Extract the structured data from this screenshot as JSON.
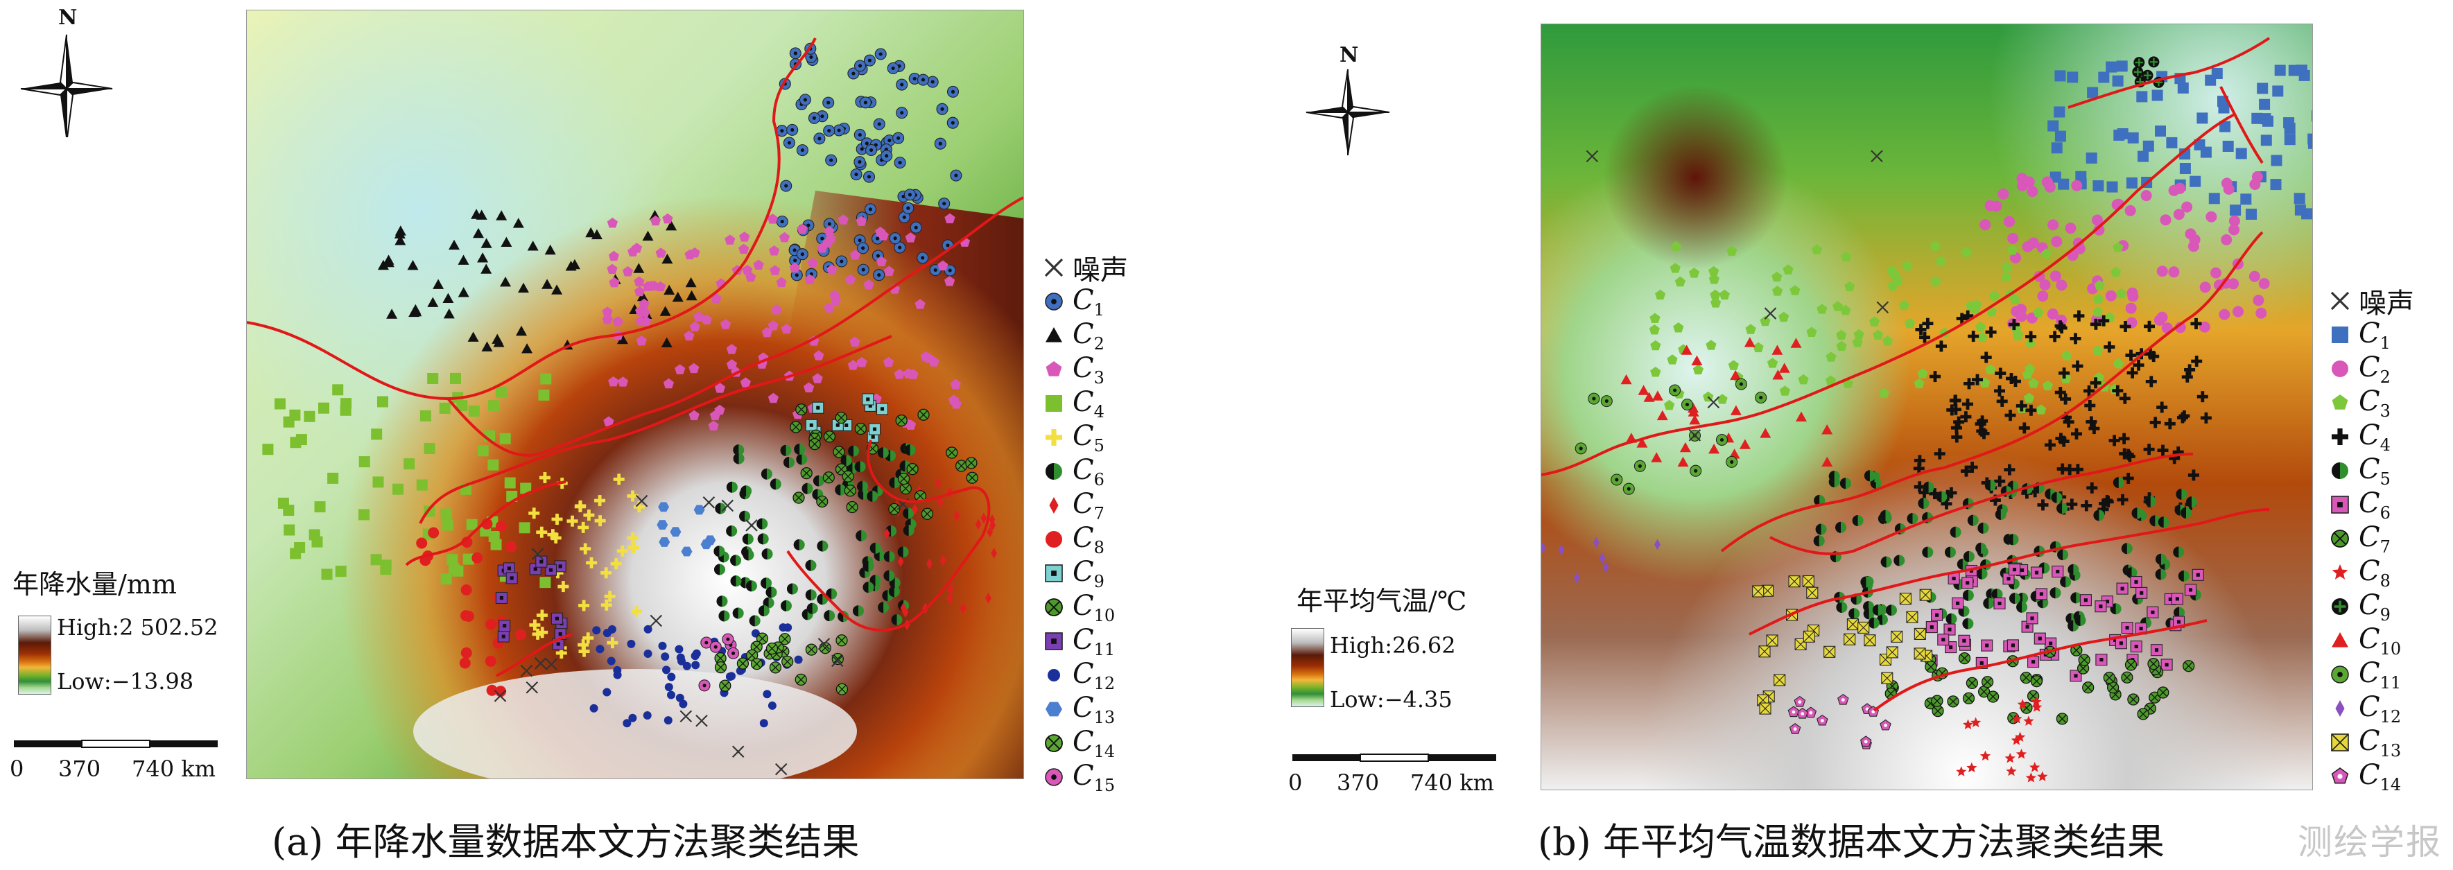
{
  "panel_a": {
    "caption": "(a) 年降水量数据本文方法聚类结果",
    "north_label": "N",
    "legend_title": "年降水量/mm",
    "high_label": "High:2 502.52",
    "low_label": "Low:−13.98",
    "scale_ticks": [
      "0",
      "370",
      "740 km"
    ],
    "noise_label": "噪声",
    "clusters": [
      {
        "id": "C",
        "sub": "1",
        "symbol": "circle-dot",
        "color": "#3f6fbf"
      },
      {
        "id": "C",
        "sub": "2",
        "symbol": "triangle",
        "color": "#111111"
      },
      {
        "id": "C",
        "sub": "3",
        "symbol": "pentagon",
        "color": "#d957b8"
      },
      {
        "id": "C",
        "sub": "4",
        "symbol": "square",
        "color": "#7cbf2f"
      },
      {
        "id": "C",
        "sub": "5",
        "symbol": "cross",
        "color": "#f3e040"
      },
      {
        "id": "C",
        "sub": "6",
        "symbol": "half-circle",
        "color": "#2f8f2f"
      },
      {
        "id": "C",
        "sub": "7",
        "symbol": "diamond",
        "color": "#e02020"
      },
      {
        "id": "C",
        "sub": "8",
        "symbol": "circle",
        "color": "#e02020"
      },
      {
        "id": "C",
        "sub": "9",
        "symbol": "square-dot",
        "color": "#7fd0d0"
      },
      {
        "id": "C",
        "sub": "10",
        "symbol": "circle-x",
        "color": "#4c9a2a"
      },
      {
        "id": "C",
        "sub": "11",
        "symbol": "square-dot",
        "color": "#7a3fb0"
      },
      {
        "id": "C",
        "sub": "12",
        "symbol": "small-dot",
        "color": "#1a2f9a"
      },
      {
        "id": "C",
        "sub": "13",
        "symbol": "hexagon",
        "color": "#4d7fd0"
      },
      {
        "id": "C",
        "sub": "14",
        "symbol": "circle-x",
        "color": "#5aa832"
      },
      {
        "id": "C",
        "sub": "15",
        "symbol": "circle-dot",
        "color": "#d957b8"
      }
    ]
  },
  "panel_b": {
    "caption": "(b) 年平均气温数据本文方法聚类结果",
    "north_label": "N",
    "legend_title": "年平均气温/℃",
    "high_label": "High:26.62",
    "low_label": "Low:−4.35",
    "scale_ticks": [
      "0",
      "370",
      "740 km"
    ],
    "noise_label": "噪声",
    "clusters": [
      {
        "id": "C",
        "sub": "1",
        "symbol": "square",
        "color": "#3f6fbf"
      },
      {
        "id": "C",
        "sub": "2",
        "symbol": "circle",
        "color": "#d957b8"
      },
      {
        "id": "C",
        "sub": "3",
        "symbol": "pentagon",
        "color": "#7cc83a"
      },
      {
        "id": "C",
        "sub": "4",
        "symbol": "cross",
        "color": "#111111"
      },
      {
        "id": "C",
        "sub": "5",
        "symbol": "half-circle",
        "color": "#2f8f2f"
      },
      {
        "id": "C",
        "sub": "6",
        "symbol": "square-dot",
        "color": "#d957b8"
      },
      {
        "id": "C",
        "sub": "7",
        "symbol": "circle-x",
        "color": "#4c9a2a"
      },
      {
        "id": "C",
        "sub": "8",
        "symbol": "star",
        "color": "#e02020"
      },
      {
        "id": "C",
        "sub": "9",
        "symbol": "circle-plus",
        "color": "#2f8f2f"
      },
      {
        "id": "C",
        "sub": "10",
        "symbol": "triangle",
        "color": "#e02020"
      },
      {
        "id": "C",
        "sub": "11",
        "symbol": "circle-dot",
        "color": "#5aa832"
      },
      {
        "id": "C",
        "sub": "12",
        "symbol": "diamond",
        "color": "#8a4fc0"
      },
      {
        "id": "C",
        "sub": "13",
        "symbol": "square-x",
        "color": "#e6d83a"
      },
      {
        "id": "C",
        "sub": "14",
        "symbol": "pentagon-dot",
        "color": "#d957b8"
      }
    ]
  },
  "watermark": "测绘学报"
}
